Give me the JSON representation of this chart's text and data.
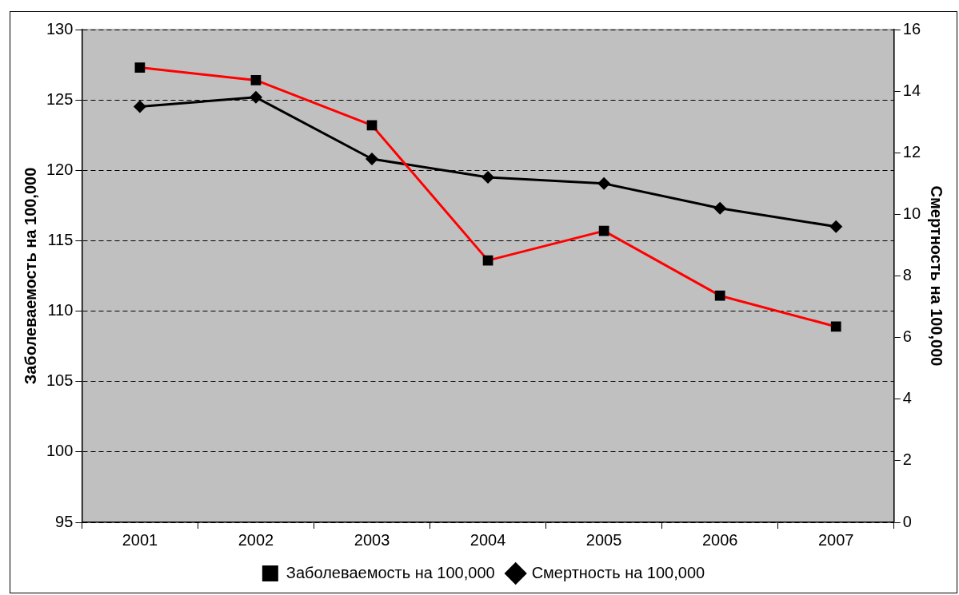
{
  "chart_data": {
    "type": "line",
    "categories": [
      "2001",
      "2002",
      "2003",
      "2004",
      "2005",
      "2006",
      "2007"
    ],
    "series": [
      {
        "name": "Заболеваемость на 100,000",
        "color": "#ff0000",
        "marker": "square",
        "values": [
          127.3,
          126.4,
          123.2,
          113.6,
          115.7,
          111.1,
          108.9
        ]
      },
      {
        "name": "Смертность на 100,000",
        "color": "#000000",
        "marker": "diamond",
        "axis": "y2",
        "values": [
          13.5,
          13.8,
          11.8,
          11.2,
          11.0,
          10.2,
          9.6
        ]
      }
    ],
    "ylabel": "Заболеваемость на 100,000",
    "y2label": "Смертность на 100,000",
    "ylim": [
      95,
      130
    ],
    "yticks": [
      95,
      100,
      105,
      110,
      115,
      120,
      125,
      130
    ],
    "y2lim": [
      0,
      16
    ],
    "y2ticks": [
      0,
      2,
      4,
      6,
      8,
      10,
      12,
      14,
      16
    ],
    "grid": "y",
    "legend": "bottom",
    "line_style": "solid"
  }
}
